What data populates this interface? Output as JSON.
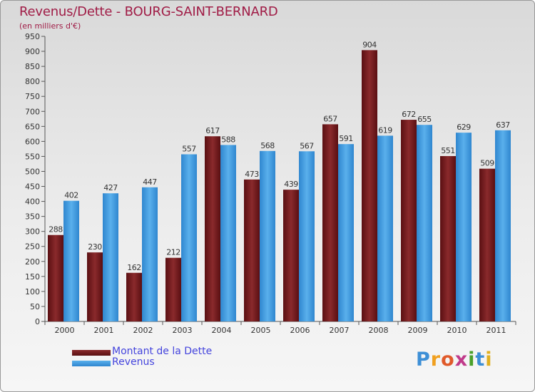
{
  "chart_data": {
    "type": "bar",
    "title": "Revenus/Dette - BOURG-SAINT-BERNARD",
    "subtitle": "(en milliers d'€)",
    "categories": [
      "2000",
      "2001",
      "2002",
      "2003",
      "2004",
      "2005",
      "2006",
      "2007",
      "2008",
      "2009",
      "2010",
      "2011"
    ],
    "series": [
      {
        "name": "Montant de la Dette",
        "color": "#7a1a1a",
        "values": [
          288,
          230,
          162,
          212,
          617,
          473,
          439,
          657,
          904,
          672,
          551,
          509
        ]
      },
      {
        "name": "Revenus",
        "color": "#3d97dc",
        "values": [
          402,
          427,
          447,
          557,
          588,
          568,
          567,
          591,
          619,
          655,
          629,
          637
        ]
      }
    ],
    "ylim": [
      0,
      950
    ],
    "yticks": [
      0,
      50,
      100,
      150,
      200,
      250,
      300,
      350,
      400,
      450,
      500,
      550,
      600,
      650,
      700,
      750,
      800,
      850,
      900,
      950
    ],
    "grid": false,
    "legend_position": "bottom-left"
  },
  "logo": {
    "letters": [
      "P",
      "r",
      "o",
      "x",
      "i",
      "t",
      "i"
    ],
    "colors": [
      "#3d8fd6",
      "#f0a020",
      "#e05a2a",
      "#c03a8a",
      "#4aa02a",
      "#3d8fd6",
      "#e0b020"
    ]
  }
}
